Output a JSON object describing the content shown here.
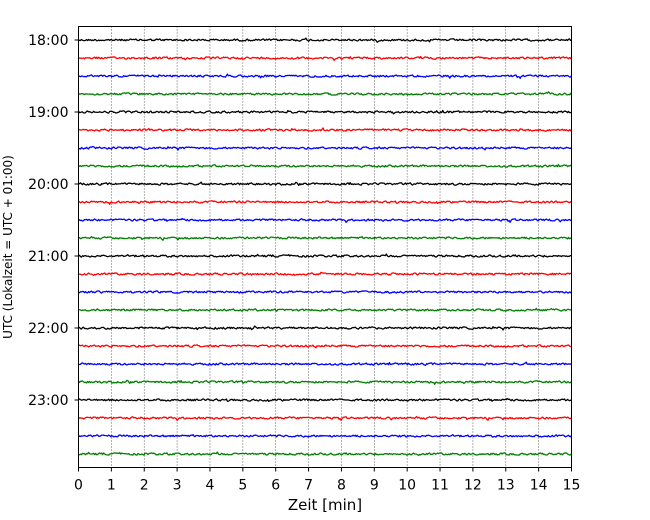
{
  "chart_data": {
    "type": "line",
    "title": "",
    "xlabel": "Zeit  [min]",
    "ylabel": "UTC (Lokalzeit = UTC + 01:00)",
    "xlim": [
      0,
      15
    ],
    "x_ticks": [
      0,
      1,
      2,
      3,
      4,
      5,
      6,
      7,
      8,
      9,
      10,
      11,
      12,
      13,
      14,
      15
    ],
    "y_ticks": [
      "18:00",
      "19:00",
      "20:00",
      "21:00",
      "22:00",
      "23:00"
    ],
    "grid": "vertical-dotted",
    "trace_interval_min": 15,
    "start_time": "18:00",
    "trace_count": 24,
    "trace_colors": [
      "#000000",
      "#ff0000",
      "#0000ff",
      "#007f00"
    ]
  }
}
